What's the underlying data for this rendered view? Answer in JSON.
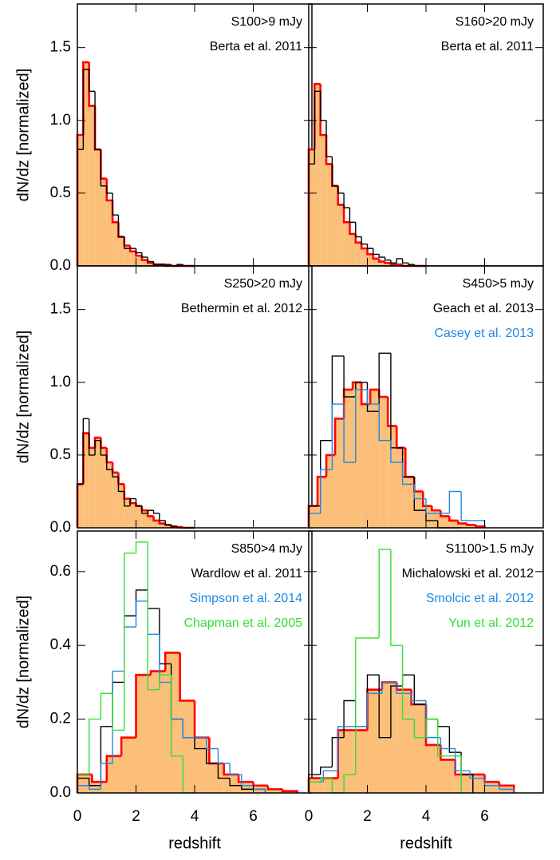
{
  "chart_data": [
    {
      "type": "histogram",
      "title": "S100>9 mJy",
      "ylabel": "dN/dz [normalized]",
      "xlim": [
        0,
        8
      ],
      "ylim": [
        0,
        1.8
      ],
      "xticks": [
        0,
        2,
        4,
        6
      ],
      "yticks": [
        {
          "value": 0,
          "label": "0.0"
        },
        {
          "value": 0.5,
          "label": "0.5"
        },
        {
          "value": 1,
          "label": "1.0"
        },
        {
          "value": 1.5,
          "label": "1.5"
        }
      ],
      "series": [
        {
          "color": "#ff0000",
          "fill": "#fbbf7a",
          "bins": [
            0,
            0.2,
            0.4,
            0.6,
            0.8,
            1,
            1.2,
            1.4,
            1.6,
            1.8,
            2,
            2.2,
            2.4,
            2.6,
            2.8,
            3,
            3.2,
            3.4,
            3.6,
            3.8,
            4
          ],
          "values": [
            0.9,
            1.4,
            1.1,
            0.8,
            0.6,
            0.45,
            0.3,
            0.2,
            0.14,
            0.1,
            0.07,
            0.04,
            0.02,
            0.01,
            0.01,
            0,
            0,
            0,
            0,
            0
          ]
        },
        {
          "name": "Berta et al. 2011",
          "color": "#000000",
          "bins": [
            0,
            0.2,
            0.4,
            0.6,
            0.8,
            1,
            1.2,
            1.4,
            1.6,
            1.8,
            2,
            2.2,
            2.4,
            2.6,
            2.8,
            3,
            3.2,
            3.4,
            3.6,
            3.8,
            4
          ],
          "values": [
            0.8,
            1.35,
            1.2,
            0.8,
            0.55,
            0.5,
            0.35,
            0.2,
            0.12,
            0.12,
            0.09,
            0.06,
            0.03,
            0.01,
            0.01,
            0.01,
            0,
            0.01,
            0,
            0
          ]
        }
      ]
    },
    {
      "type": "histogram",
      "title": "S160>20 mJy",
      "xlim": [
        0,
        8
      ],
      "ylim": [
        0,
        1.8
      ],
      "xticks": [
        0,
        2,
        4,
        6
      ],
      "yticks": [
        0,
        0.5,
        1,
        1.5
      ],
      "series": [
        {
          "color": "#ff0000",
          "fill": "#fbbf7a",
          "bins": [
            0,
            0.2,
            0.4,
            0.6,
            0.8,
            1,
            1.2,
            1.4,
            1.6,
            1.8,
            2,
            2.2,
            2.4,
            2.6,
            2.8,
            3,
            3.2,
            3.4,
            3.6,
            3.8,
            4
          ],
          "values": [
            0.8,
            1.25,
            0.9,
            0.7,
            0.55,
            0.42,
            0.3,
            0.22,
            0.16,
            0.12,
            0.08,
            0.05,
            0.03,
            0.02,
            0.01,
            0.01,
            0,
            0,
            0,
            0
          ]
        },
        {
          "name": "Berta et al. 2011",
          "color": "#000000",
          "bins": [
            0,
            0.2,
            0.4,
            0.6,
            0.8,
            1,
            1.2,
            1.4,
            1.6,
            1.8,
            2,
            2.2,
            2.4,
            2.6,
            2.8,
            3,
            3.2,
            3.4,
            3.6,
            3.8,
            4
          ],
          "values": [
            0.7,
            1.2,
            1.0,
            0.75,
            0.55,
            0.5,
            0.4,
            0.3,
            0.2,
            0.15,
            0.12,
            0.08,
            0.06,
            0.04,
            0.02,
            0.05,
            0.02,
            0.01,
            0,
            0
          ]
        }
      ]
    },
    {
      "type": "histogram",
      "title": "S250>20 mJy",
      "ylabel": "dN/dz [normalized]",
      "xlim": [
        0,
        8
      ],
      "ylim": [
        0,
        1.8
      ],
      "xticks": [
        0,
        2,
        4,
        6
      ],
      "yticks": [
        {
          "value": 0,
          "label": "0.0"
        },
        {
          "value": 0.5,
          "label": "0.5"
        },
        {
          "value": 1,
          "label": "1.0"
        },
        {
          "value": 1.5,
          "label": "1.5"
        }
      ],
      "series": [
        {
          "color": "#ff0000",
          "fill": "#fbbf7a",
          "bins": [
            0,
            0.2,
            0.4,
            0.6,
            0.8,
            1,
            1.2,
            1.4,
            1.6,
            1.8,
            2,
            2.2,
            2.4,
            2.6,
            2.8,
            3,
            3.2,
            3.4,
            3.6,
            3.8,
            4
          ],
          "values": [
            0.3,
            0.65,
            0.55,
            0.62,
            0.55,
            0.45,
            0.38,
            0.3,
            0.2,
            0.17,
            0.15,
            0.12,
            0.08,
            0.05,
            0.03,
            0.02,
            0.01,
            0.005,
            0,
            0
          ]
        },
        {
          "name": "Bethermin et al. 2012",
          "color": "#000000",
          "bins": [
            0,
            0.2,
            0.4,
            0.6,
            0.8,
            1,
            1.2,
            1.4,
            1.6,
            1.8,
            2,
            2.2,
            2.4,
            2.6,
            2.8,
            3,
            3.2,
            3.4,
            3.6,
            3.8,
            4
          ],
          "values": [
            0.3,
            0.75,
            0.5,
            0.6,
            0.5,
            0.4,
            0.35,
            0.25,
            0.15,
            0.2,
            0.15,
            0.1,
            0.12,
            0.1,
            0.05,
            0.02,
            0.01,
            0,
            0,
            0
          ]
        }
      ]
    },
    {
      "type": "histogram",
      "title": "S450>5 mJy",
      "xlim": [
        0,
        8
      ],
      "ylim": [
        0,
        1.8
      ],
      "xticks": [
        0,
        2,
        4,
        6
      ],
      "yticks": [
        0,
        0.5,
        1,
        1.5
      ],
      "series": [
        {
          "color": "#ff0000",
          "fill": "#fbbf7a",
          "bins": [
            0,
            0.3,
            0.6,
            0.9,
            1.2,
            1.5,
            1.8,
            2.1,
            2.4,
            2.7,
            3,
            3.3,
            3.6,
            3.9,
            4.2,
            4.5,
            4.8,
            5.1,
            5.4,
            5.7,
            6
          ],
          "values": [
            0.15,
            0.35,
            0.5,
            0.75,
            0.95,
            1.0,
            0.85,
            0.95,
            0.9,
            0.7,
            0.55,
            0.35,
            0.25,
            0.15,
            0.12,
            0.08,
            0.05,
            0.03,
            0.02,
            0.01
          ]
        },
        {
          "name": "Geach et al. 2013",
          "color": "#000000",
          "bins": [
            0,
            0.4,
            0.8,
            1.2,
            1.6,
            2,
            2.4,
            2.8,
            3.2,
            3.6,
            4,
            4.4,
            4.8,
            5.2
          ],
          "values": [
            0.15,
            0.6,
            1.18,
            0.9,
            1.0,
            0.8,
            1.2,
            0.55,
            0.35,
            0.12,
            0.05,
            0,
            0
          ]
        },
        {
          "name": "Casey et al. 2013",
          "color": "#1e88e5",
          "bins": [
            0,
            0.4,
            0.8,
            1.2,
            1.6,
            2,
            2.4,
            2.8,
            3.2,
            3.6,
            4,
            4.4,
            4.8,
            5.2,
            5.6,
            6
          ],
          "values": [
            0.1,
            0.4,
            0.85,
            0.45,
            0.95,
            0.85,
            0.6,
            0.45,
            0.3,
            0.2,
            0.1,
            0.1,
            0.25,
            0.05,
            0.05
          ]
        }
      ]
    },
    {
      "type": "histogram",
      "title": "S850>4 mJy",
      "ylabel": "dN/dz [normalized]",
      "xlabel": "redshift",
      "xlim": [
        0,
        8
      ],
      "ylim": [
        0,
        0.71
      ],
      "xticks": [
        0,
        2,
        4,
        6
      ],
      "yticks": [
        {
          "value": 0,
          "label": "0.0"
        },
        {
          "value": 0.2,
          "label": "0.2"
        },
        {
          "value": 0.4,
          "label": "0.4"
        },
        {
          "value": 0.6,
          "label": "0.6"
        }
      ],
      "series": [
        {
          "color": "#ff0000",
          "fill": "#fbbf7a",
          "bins": [
            0,
            0.5,
            1,
            1.5,
            2,
            2.5,
            3,
            3.5,
            4,
            4.5,
            5,
            5.5,
            6,
            6.5,
            7,
            7.5
          ],
          "values": [
            0.05,
            0.03,
            0.1,
            0.15,
            0.32,
            0.33,
            0.38,
            0.25,
            0.15,
            0.08,
            0.05,
            0.03,
            0.02,
            0.01,
            0.005
          ]
        },
        {
          "name": "Wardlow et al. 2011",
          "color": "#000000",
          "bins": [
            0,
            0.4,
            0.8,
            1.2,
            1.6,
            2,
            2.4,
            2.8,
            3.2,
            3.6,
            4,
            4.4,
            4.8,
            5.2,
            5.6,
            6,
            6.4
          ],
          "values": [
            0.04,
            0.02,
            0.18,
            0.3,
            0.48,
            0.55,
            0.5,
            0.35,
            0.2,
            0.15,
            0.12,
            0.08,
            0.04,
            0.02,
            0.01,
            0.01
          ]
        },
        {
          "name": "Simpson et al. 2014",
          "color": "#1e88e5",
          "bins": [
            0,
            0.4,
            0.8,
            1.2,
            1.6,
            2,
            2.4,
            2.8,
            3.2,
            3.6,
            4,
            4.4,
            4.8,
            5.2,
            5.6,
            6,
            6.4
          ],
          "values": [
            0.02,
            0.01,
            0.08,
            0.33,
            0.45,
            0.52,
            0.43,
            0.3,
            0.2,
            0.15,
            0.15,
            0.12,
            0.08,
            0.05,
            0.02,
            0.01
          ]
        },
        {
          "name": "Chapman et al. 2005",
          "color": "#33e033",
          "bins": [
            0,
            0.4,
            0.8,
            1.2,
            1.6,
            2,
            2.4,
            2.8,
            3.2,
            3.6,
            4
          ],
          "values": [
            0.05,
            0.2,
            0.27,
            0.17,
            0.65,
            0.68,
            0.28,
            0.32,
            0.1,
            0
          ]
        }
      ]
    },
    {
      "type": "histogram",
      "title": "S1100>1.5 mJy",
      "xlabel": "redshift",
      "xlim": [
        0,
        8
      ],
      "ylim": [
        0,
        0.71
      ],
      "xticks": [
        0,
        2,
        4,
        6
      ],
      "yticks": [
        0,
        0.2,
        0.4,
        0.6
      ],
      "series": [
        {
          "color": "#ff0000",
          "fill": "#fbbf7a",
          "bins": [
            0,
            0.5,
            1,
            1.5,
            2,
            2.5,
            3,
            3.5,
            4,
            4.5,
            5,
            5.5,
            6,
            6.5,
            7
          ],
          "values": [
            0.04,
            0.04,
            0.17,
            0.17,
            0.28,
            0.3,
            0.28,
            0.24,
            0.13,
            0.09,
            0.05,
            0.05,
            0.03,
            0.02
          ]
        },
        {
          "name": "Michalowski et al. 2012",
          "color": "#000000",
          "bins": [
            0,
            0.4,
            0.8,
            1.2,
            1.6,
            2,
            2.4,
            2.8,
            3.2,
            3.6,
            4,
            4.4,
            4.8,
            5.2,
            5.6
          ],
          "values": [
            0.05,
            0.07,
            0.15,
            0.25,
            0.18,
            0.32,
            0.15,
            0.29,
            0.32,
            0.24,
            0.2,
            0.18,
            0.11,
            0.05
          ]
        },
        {
          "name": "Smolcic et al. 2012",
          "color": "#1e88e5",
          "bins": [
            0,
            0.5,
            1,
            1.5,
            2,
            2.5,
            3,
            3.5,
            4,
            4.5,
            5,
            5.5,
            6,
            6.5,
            7
          ],
          "values": [
            0.03,
            0.06,
            0.18,
            0.18,
            0.27,
            0.3,
            0.27,
            0.25,
            0.15,
            0.12,
            0.06,
            0.04,
            0.02,
            0.01
          ]
        },
        {
          "name": "Yun et al. 2012",
          "color": "#33e033",
          "bins": [
            0,
            0.4,
            0.8,
            1.2,
            1.6,
            2,
            2.4,
            2.8,
            3.2,
            3.6,
            4,
            4.4,
            4.8,
            5.2
          ],
          "values": [
            0.03,
            0.04,
            0,
            0.05,
            0.42,
            0.42,
            0.66,
            0.4,
            0.2,
            0.15,
            0.2,
            0.1,
            0.1
          ]
        }
      ]
    }
  ]
}
